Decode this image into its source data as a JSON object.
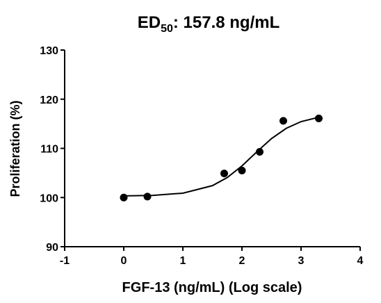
{
  "chart_data": {
    "type": "scatter",
    "title": {
      "main": "ED",
      "subscript": "50",
      "rest": ": 157.8 ng/mL"
    },
    "x_label": "FGF-13 (ng/mL) (Log scale)",
    "y_label": "Proliferation (%)",
    "x": [
      0,
      0.4,
      1.7,
      2.0,
      2.3,
      2.7,
      3.3
    ],
    "values": [
      100,
      100.2,
      104.9,
      105.5,
      109.3,
      115.6,
      116.1
    ],
    "color": "#000000",
    "fit": {
      "x": [
        0,
        0.5,
        1,
        1.5,
        1.75,
        2,
        2.25,
        2.5,
        2.75,
        3,
        3.3
      ],
      "values": [
        100.34,
        100.45,
        100.89,
        102.42,
        104.06,
        106.43,
        109.28,
        111.99,
        114.08,
        115.44,
        116.33
      ]
    },
    "xlim": [
      -1,
      4
    ],
    "xticks": [
      -1,
      0,
      1,
      2,
      3,
      4
    ],
    "ylim": [
      90,
      130
    ],
    "yticks": [
      90,
      100,
      110,
      120,
      130
    ]
  }
}
